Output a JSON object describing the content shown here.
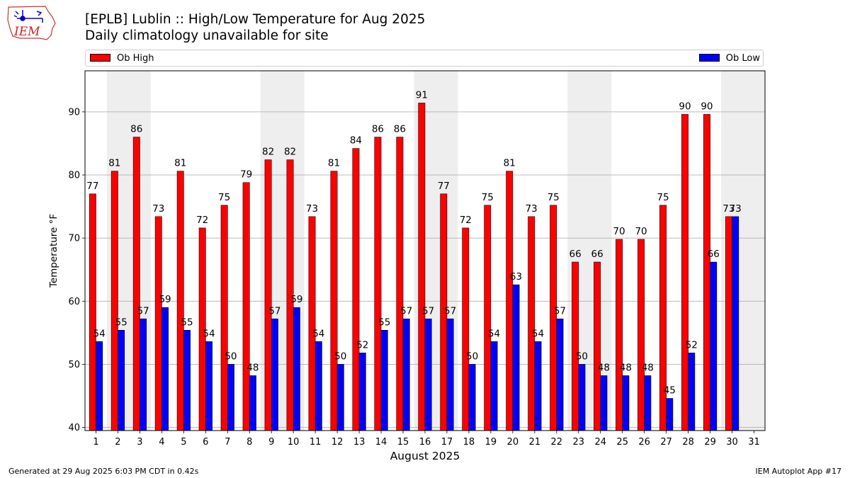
{
  "header": {
    "title": "[EPLB] Lublin :: High/Low Temperature for Aug 2025",
    "subtitle": "Daily climatology unavailable for site",
    "logo_text": "IEM"
  },
  "legend": {
    "placement": "top",
    "items": [
      {
        "label": "Ob High",
        "color": "#ff0000"
      },
      {
        "label": "Ob Low",
        "color": "#0000ff"
      }
    ]
  },
  "footer": {
    "left": "Generated at 29 Aug 2025 6:03 PM CDT in 0.42s",
    "right": "IEM Autoplot App #17"
  },
  "chart_data": {
    "type": "bar",
    "xlabel": "August 2025",
    "ylabel": "Temperature °F",
    "ylim": [
      39.5,
      96.5
    ],
    "yticks": [
      40,
      50,
      60,
      70,
      80,
      90
    ],
    "grid": true,
    "categories": [
      "1",
      "2",
      "3",
      "4",
      "5",
      "6",
      "7",
      "8",
      "9",
      "10",
      "11",
      "12",
      "13",
      "14",
      "15",
      "16",
      "17",
      "18",
      "19",
      "20",
      "21",
      "22",
      "23",
      "24",
      "25",
      "26",
      "27",
      "28",
      "29",
      "30",
      "31"
    ],
    "weekend_shading": [
      [
        2,
        3
      ],
      [
        9,
        10
      ],
      [
        16,
        17
      ],
      [
        23,
        24
      ],
      [
        30,
        31
      ]
    ],
    "colors": {
      "high": "#ff0000",
      "low": "#0000ff",
      "shade": "#eeeeee",
      "grid": "#b0b0b0"
    },
    "series": [
      {
        "name": "Ob High",
        "values": [
          77,
          81,
          86,
          73,
          81,
          72,
          75,
          79,
          82,
          82,
          73,
          81,
          84,
          86,
          86,
          91,
          77,
          72,
          75,
          81,
          73,
          75,
          66,
          66,
          70,
          70,
          75,
          90,
          90,
          73,
          null
        ],
        "plot_values": [
          77,
          80.6,
          86,
          73.4,
          80.6,
          71.6,
          75.2,
          78.8,
          82.4,
          82.4,
          73.4,
          80.6,
          84.2,
          86,
          86,
          91.4,
          77,
          71.6,
          75.2,
          80.6,
          73.4,
          75.2,
          66.2,
          66.2,
          69.8,
          69.8,
          75.2,
          89.6,
          89.6,
          73.4,
          null
        ]
      },
      {
        "name": "Ob Low",
        "values": [
          54,
          55,
          57,
          59,
          55,
          54,
          50,
          48,
          57,
          59,
          54,
          50,
          52,
          55,
          57,
          57,
          57,
          50,
          54,
          63,
          54,
          57,
          50,
          48,
          48,
          48,
          45,
          52,
          66,
          73,
          null
        ],
        "plot_values": [
          53.6,
          55.4,
          57.2,
          59,
          55.4,
          53.6,
          50,
          48.2,
          57.2,
          59,
          53.6,
          50,
          51.8,
          55.4,
          57.2,
          57.2,
          57.2,
          50,
          53.6,
          62.6,
          53.6,
          57.2,
          50,
          48.2,
          48.2,
          48.2,
          44.6,
          51.8,
          66.2,
          73.4,
          null
        ]
      }
    ]
  }
}
